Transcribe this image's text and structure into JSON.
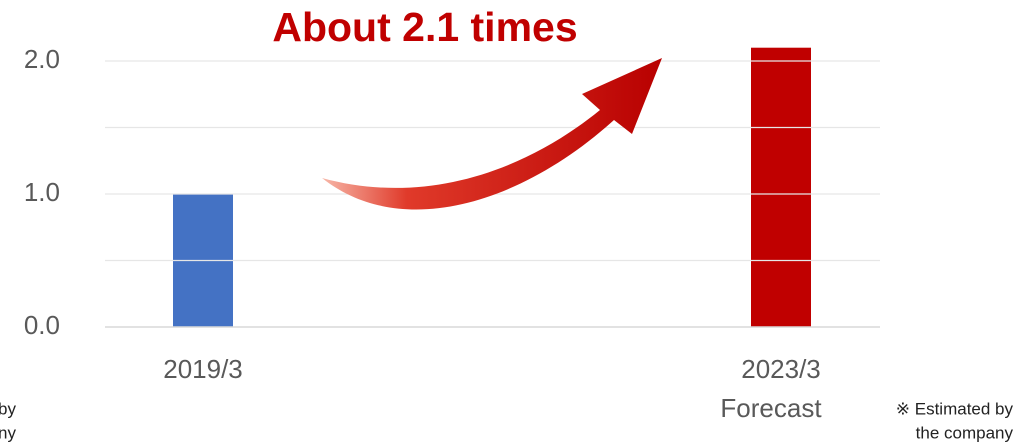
{
  "chart_data": {
    "type": "bar",
    "annotation": "About 2.1 times",
    "categories": [
      "2019/3",
      "2023/3"
    ],
    "category_notes": [
      null,
      "Forecast"
    ],
    "values": [
      1.0,
      2.1
    ],
    "colors": [
      "#4472c4",
      "#c00000"
    ],
    "ylim": [
      0,
      2
    ],
    "yticks": [
      {
        "value": 0,
        "label": "0.0"
      },
      {
        "value": 1,
        "label": "1.0"
      },
      {
        "value": 2,
        "label": "2.0"
      }
    ],
    "grid_ticks": [
      0.5,
      1.5
    ],
    "grid": true,
    "note": [
      "※ Estimated by",
      "the company"
    ]
  }
}
